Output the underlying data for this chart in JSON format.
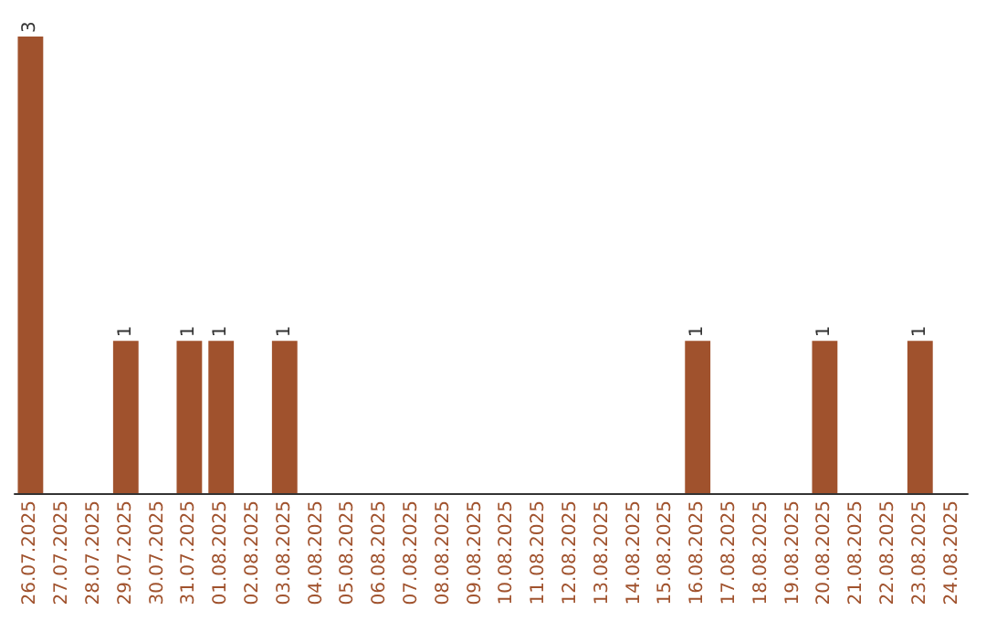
{
  "chart_data": {
    "type": "bar",
    "categories": [
      "26.07.2025",
      "27.07.2025",
      "28.07.2025",
      "29.07.2025",
      "30.07.2025",
      "31.07.2025",
      "01.08.2025",
      "02.08.2025",
      "03.08.2025",
      "04.08.2025",
      "05.08.2025",
      "06.08.2025",
      "07.08.2025",
      "08.08.2025",
      "09.08.2025",
      "10.08.2025",
      "11.08.2025",
      "12.08.2025",
      "13.08.2025",
      "14.08.2025",
      "15.08.2025",
      "16.08.2025",
      "17.08.2025",
      "18.08.2025",
      "19.08.2025",
      "20.08.2025",
      "21.08.2025",
      "22.08.2025",
      "23.08.2025",
      "24.08.2025"
    ],
    "values": [
      3,
      0,
      0,
      1,
      0,
      1,
      1,
      0,
      1,
      0,
      0,
      0,
      0,
      0,
      0,
      0,
      0,
      0,
      0,
      0,
      0,
      1,
      0,
      0,
      0,
      1,
      0,
      0,
      1,
      0
    ],
    "value_labels": [
      "3",
      null,
      null,
      "1",
      null,
      "1",
      "1",
      null,
      "1",
      null,
      null,
      null,
      null,
      null,
      null,
      null,
      null,
      null,
      null,
      null,
      null,
      "1",
      null,
      null,
      null,
      "1",
      null,
      null,
      "1",
      null
    ],
    "color": "#a0522d"
  }
}
